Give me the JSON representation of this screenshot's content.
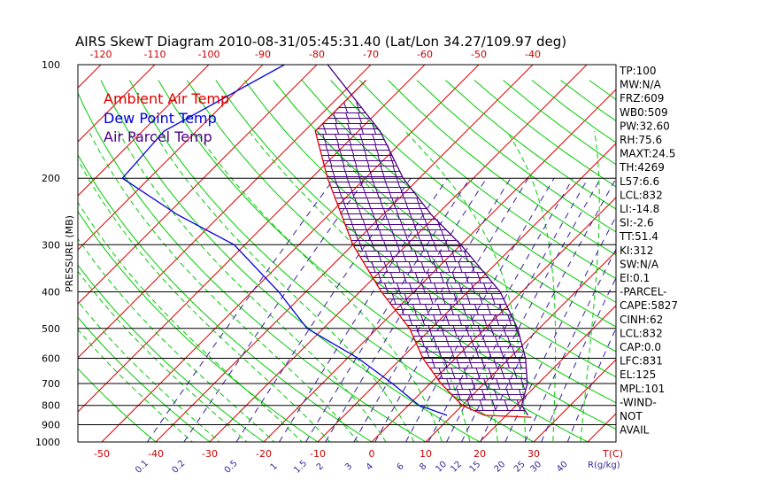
{
  "colors": {
    "ambient": "#e00000",
    "dewpoint": "#0000dd",
    "parcel": "#4b0082",
    "dry_adiabat": "#00cc00",
    "moist_adiabat": "#00cc00",
    "isotherm": "#e00000",
    "mixing_ratio": "#3a1f9a",
    "cape_hatch": "#4b0082"
  },
  "chart_data": {
    "type": "line",
    "title": "AIRS SkewT Diagram 2010-08-31/05:45:31.40 (Lat/Lon 34.27/109.97 deg)",
    "ylabel": "PRESSURE (MB)",
    "xlabel_bottom_unit": "T(C)",
    "mixing_ratio_unit": "R(g/kg)",
    "pressure_levels": [
      "100",
      "200",
      "300",
      "400",
      "500",
      "600",
      "700",
      "800",
      "900",
      "1000"
    ],
    "pressure_values": [
      100,
      200,
      300,
      400,
      500,
      600,
      700,
      800,
      900,
      1000
    ],
    "ylim": [
      100,
      1000
    ],
    "top_temp_ticks": [
      "-120",
      "-110",
      "-100",
      "-90",
      "-80",
      "-70",
      "-60",
      "-50",
      "-40"
    ],
    "bottom_temp_ticks": [
      "-50",
      "-40",
      "-30",
      "-20",
      "-10",
      "0",
      "10",
      "20",
      "30"
    ],
    "mixing_ratio_ticks": [
      "0.1",
      "0.2",
      "0.5",
      "1",
      "1.5",
      "2",
      "3",
      "4",
      "6",
      "8",
      "10",
      "12",
      "15",
      "20",
      "25",
      "30",
      "40"
    ],
    "series": [
      {
        "name": "Ambient Air Temp",
        "pressure": [
          110,
          150,
          200,
          300,
          400,
          500,
          600,
          700,
          800,
          850,
          860
        ],
        "temp": [
          -68,
          -68,
          -57,
          -40,
          -26,
          -14,
          -6,
          2,
          10,
          16,
          25
        ]
      },
      {
        "name": "Dew Point Temp",
        "pressure": [
          100,
          150,
          200,
          250,
          300,
          400,
          500,
          600,
          700,
          800,
          850
        ],
        "temp": [
          -86,
          -96,
          -95,
          -78,
          -62,
          -45,
          -33,
          -18,
          -7,
          2,
          9
        ]
      },
      {
        "name": "Air Parcel Temp",
        "pressure": [
          100,
          150,
          200,
          250,
          300,
          400,
          500,
          600,
          700,
          800,
          850
        ],
        "temp": [
          -78,
          -56,
          -43,
          -31,
          -20,
          -4,
          6,
          13,
          18,
          21,
          24
        ]
      }
    ],
    "legend": [
      "Ambient Air Temp",
      "Dew Point Temp",
      "Air Parcel Temp"
    ],
    "stats": [
      "TP:100",
      "MW:N/A",
      "FRZ:609",
      "WB0:509",
      "PW:32.60",
      "RH:75.6",
      "MAXT:24.5",
      "TH:4269",
      "L57:6.6",
      "LCL:832",
      "LI:-14.8",
      "SI:-2.6",
      "TT:51.4",
      "KI:312",
      "SW:N/A",
      "EI:0.1",
      "-PARCEL-",
      "CAPE:5827",
      "CINH:62",
      "LCL:832",
      "CAP:0.0",
      "LFC:831",
      "EL:125",
      "MPL:101",
      "-WIND-",
      "NOT",
      "AVAIL"
    ]
  }
}
